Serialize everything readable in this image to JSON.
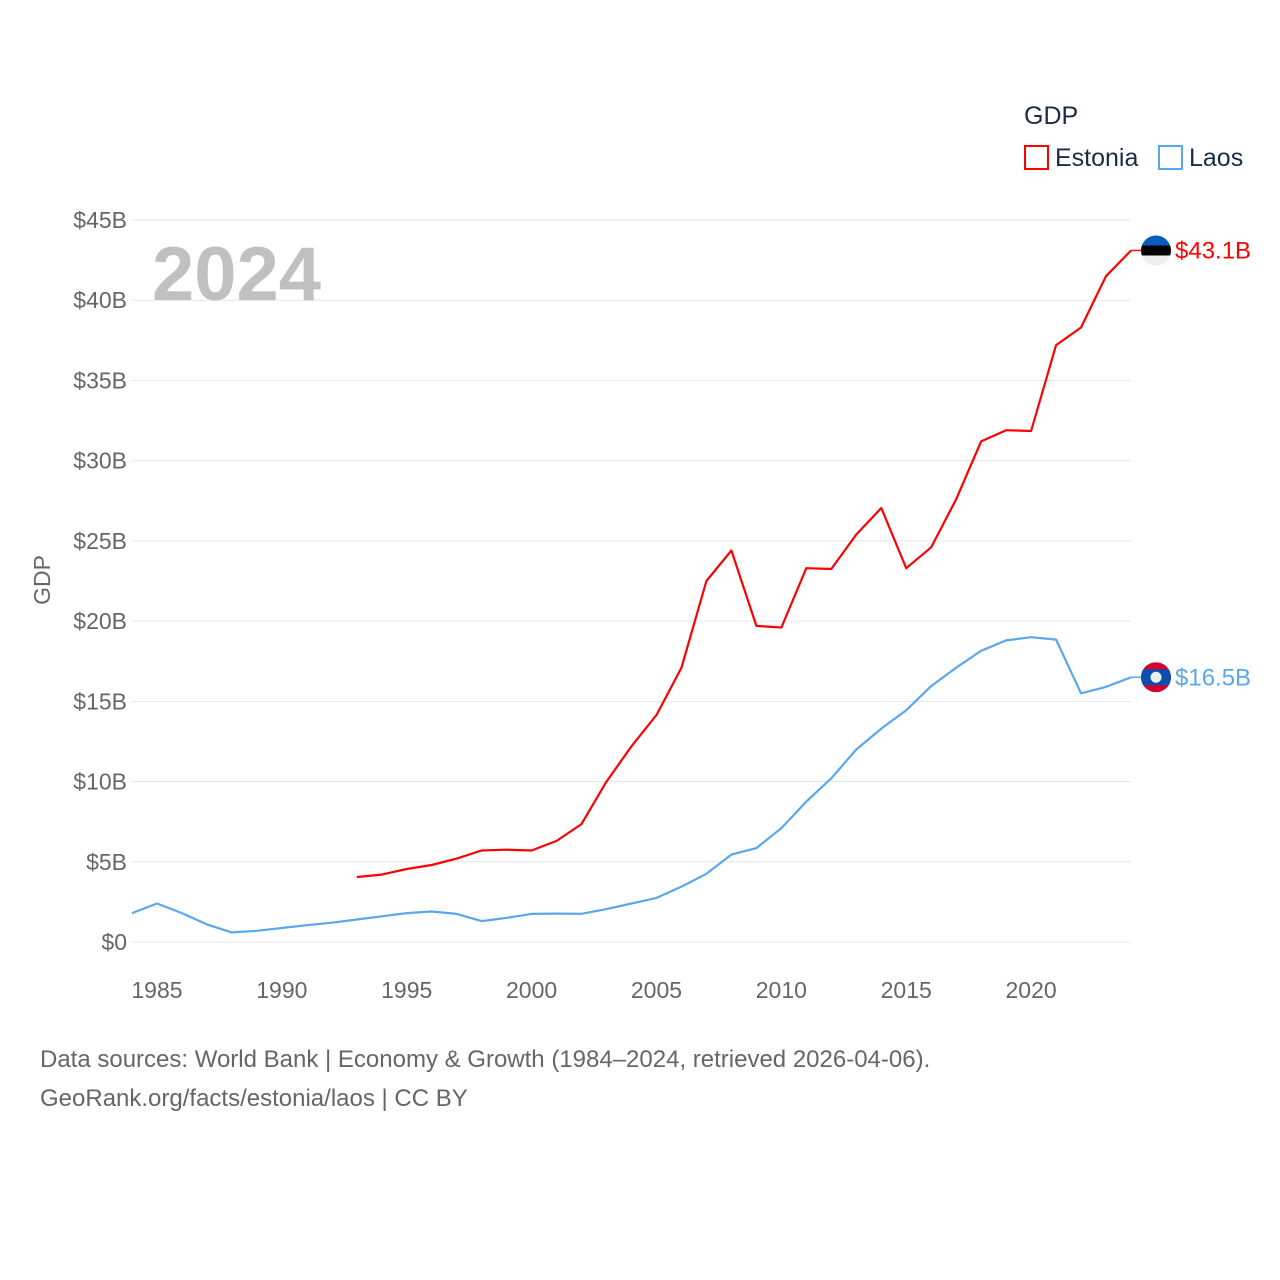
{
  "chart_data": {
    "type": "line",
    "title": "",
    "watermark_year": "2024",
    "xlabel": "",
    "ylabel": "GDP",
    "xlim": [
      1984,
      2024
    ],
    "ylim": [
      0,
      45
    ],
    "grid": true,
    "legend": {
      "title": "GDP",
      "placement": "top-right"
    },
    "x_ticks": [
      "1985",
      "1990",
      "1995",
      "2000",
      "2005",
      "2010",
      "2015",
      "2020"
    ],
    "y_ticks": [
      "$0",
      "$5B",
      "$10B",
      "$15B",
      "$20B",
      "$25B",
      "$30B",
      "$35B",
      "$40B",
      "$45B"
    ],
    "units": "billion USD",
    "series": [
      {
        "name": "Estonia",
        "color": "#ff0000",
        "end_label": "$43.1B",
        "flag": "estonia-flag",
        "x": [
          1993,
          1994,
          1995,
          1996,
          1997,
          1998,
          1999,
          2000,
          2001,
          2002,
          2003,
          2004,
          2005,
          2006,
          2007,
          2008,
          2009,
          2010,
          2011,
          2012,
          2013,
          2014,
          2015,
          2016,
          2017,
          2018,
          2019,
          2020,
          2021,
          2022,
          2023,
          2024
        ],
        "values": [
          4.05,
          4.2,
          4.55,
          4.8,
          5.2,
          5.7,
          5.75,
          5.7,
          6.3,
          7.35,
          10.0,
          12.2,
          14.15,
          17.1,
          22.5,
          24.4,
          19.7,
          19.6,
          23.3,
          23.25,
          25.4,
          27.05,
          23.3,
          24.6,
          27.6,
          31.2,
          31.9,
          31.85,
          37.2,
          38.3,
          41.5,
          43.1
        ]
      },
      {
        "name": "Laos",
        "color": "#5ba7ec",
        "end_label": "$16.5B",
        "flag": "laos-flag",
        "x": [
          1984,
          1985,
          1986,
          1987,
          1988,
          1989,
          1990,
          1991,
          1992,
          1993,
          1994,
          1995,
          1996,
          1997,
          1998,
          1999,
          2000,
          2001,
          2002,
          2003,
          2004,
          2005,
          2006,
          2007,
          2008,
          2009,
          2010,
          2011,
          2012,
          2013,
          2014,
          2015,
          2016,
          2017,
          2018,
          2019,
          2020,
          2021,
          2022,
          2023,
          2024
        ],
        "values": [
          1.8,
          2.4,
          1.8,
          1.1,
          0.6,
          0.7,
          0.87,
          1.05,
          1.2,
          1.4,
          1.6,
          1.8,
          1.9,
          1.75,
          1.3,
          1.5,
          1.75,
          1.77,
          1.76,
          2.05,
          2.4,
          2.75,
          3.45,
          4.25,
          5.45,
          5.85,
          7.1,
          8.75,
          10.2,
          12.0,
          13.3,
          14.45,
          15.95,
          17.1,
          18.15,
          18.8,
          19.0,
          18.85,
          15.5,
          15.9,
          16.5
        ]
      }
    ]
  },
  "footer": {
    "line1": "Data sources: World Bank | Economy & Growth (1984–2024, retrieved 2026-04-06).",
    "line2": "GeoRank.org/facts/estonia/laos | CC BY"
  }
}
